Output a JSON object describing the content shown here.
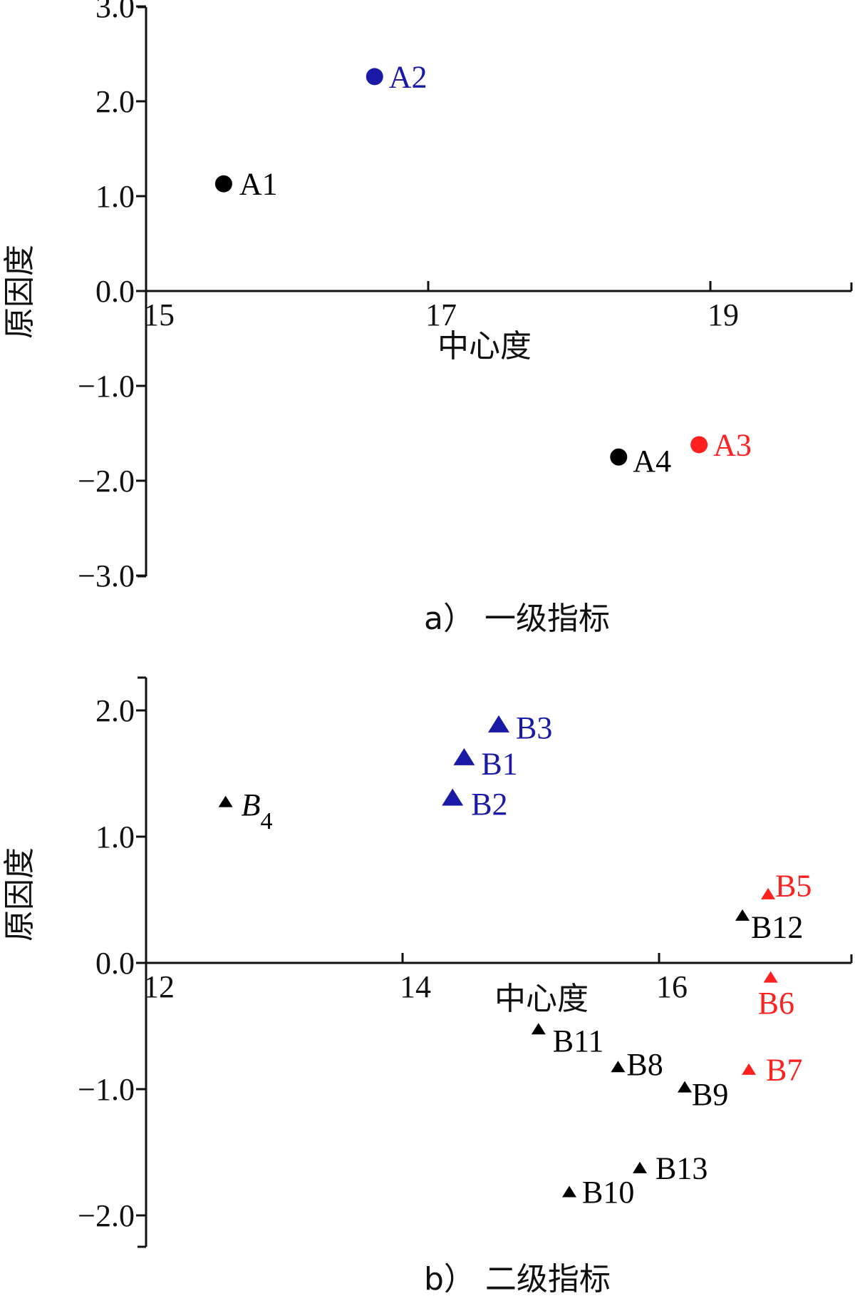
{
  "chart_data": [
    {
      "type": "scatter",
      "caption": "a） 一级指标",
      "xlabel": "中心度",
      "ylabel": "原因度",
      "xlim": [
        15,
        20
      ],
      "ylim": [
        -3.0,
        3.0
      ],
      "x_ticks": [
        15,
        17,
        19
      ],
      "x_tick_labels": [
        "15",
        "17",
        "19"
      ],
      "y_ticks": [
        3.0,
        2.0,
        1.0,
        0.0,
        -1.0,
        -2.0,
        -3.0
      ],
      "y_tick_labels": [
        "3.0",
        "2.0",
        "1.0",
        "0.0",
        "−1.0",
        "−2.0",
        "−3.0"
      ],
      "marker": "circle",
      "points": [
        {
          "label": "A1",
          "x": 15.55,
          "y": 1.13,
          "color": "#000000"
        },
        {
          "label": "A2",
          "x": 16.62,
          "y": 2.26,
          "color": "#1a1aa6"
        },
        {
          "label": "A3",
          "x": 18.92,
          "y": -1.62,
          "color": "#ff2020"
        },
        {
          "label": "A4",
          "x": 18.35,
          "y": -1.75,
          "color": "#000000"
        }
      ]
    },
    {
      "type": "scatter",
      "caption": "b） 二级指标",
      "xlabel": "中心度",
      "ylabel": "原因度",
      "xlim": [
        12,
        17.4
      ],
      "ylim": [
        -2.2,
        2.25
      ],
      "x_ticks": [
        12,
        14,
        16
      ],
      "x_tick_labels": [
        "12",
        "14",
        "16"
      ],
      "y_ticks": [
        2.0,
        1.0,
        0.0,
        -1.0,
        -2.0
      ],
      "y_tick_labels": [
        "2.0",
        "1.0",
        "0.0",
        "−1.0",
        "−2.0"
      ],
      "marker": "triangle",
      "points": [
        {
          "label": "B1",
          "x": 14.48,
          "y": 1.62,
          "color": "#1a1aa6",
          "size": "large"
        },
        {
          "label": "B2",
          "x": 14.39,
          "y": 1.3,
          "color": "#1a1aa6",
          "size": "large"
        },
        {
          "label": "B3",
          "x": 14.75,
          "y": 1.88,
          "color": "#1a1aa6",
          "size": "large"
        },
        {
          "label": "B",
          "subscript": "4",
          "italic": true,
          "x": 12.62,
          "y": 1.27,
          "color": "#000000",
          "size": "small"
        },
        {
          "label": "B5",
          "x": 16.85,
          "y": 0.54,
          "color": "#ff2020",
          "size": "small"
        },
        {
          "label": "B6",
          "x": 16.87,
          "y": -0.12,
          "color": "#ff2020",
          "size": "small"
        },
        {
          "label": "B7",
          "x": 16.7,
          "y": -0.85,
          "color": "#ff2020",
          "size": "small"
        },
        {
          "label": "B8",
          "x": 15.68,
          "y": -0.83,
          "color": "#000000",
          "size": "small"
        },
        {
          "label": "B9",
          "x": 16.2,
          "y": -0.99,
          "color": "#000000",
          "size": "small"
        },
        {
          "label": "B10",
          "x": 15.3,
          "y": -1.82,
          "color": "#000000",
          "size": "small"
        },
        {
          "label": "B11",
          "x": 15.06,
          "y": -0.53,
          "color": "#000000",
          "size": "small"
        },
        {
          "label": "B12",
          "x": 16.65,
          "y": 0.37,
          "color": "#000000",
          "size": "small"
        },
        {
          "label": "B13",
          "x": 15.85,
          "y": -1.63,
          "color": "#000000",
          "size": "small"
        }
      ]
    }
  ]
}
